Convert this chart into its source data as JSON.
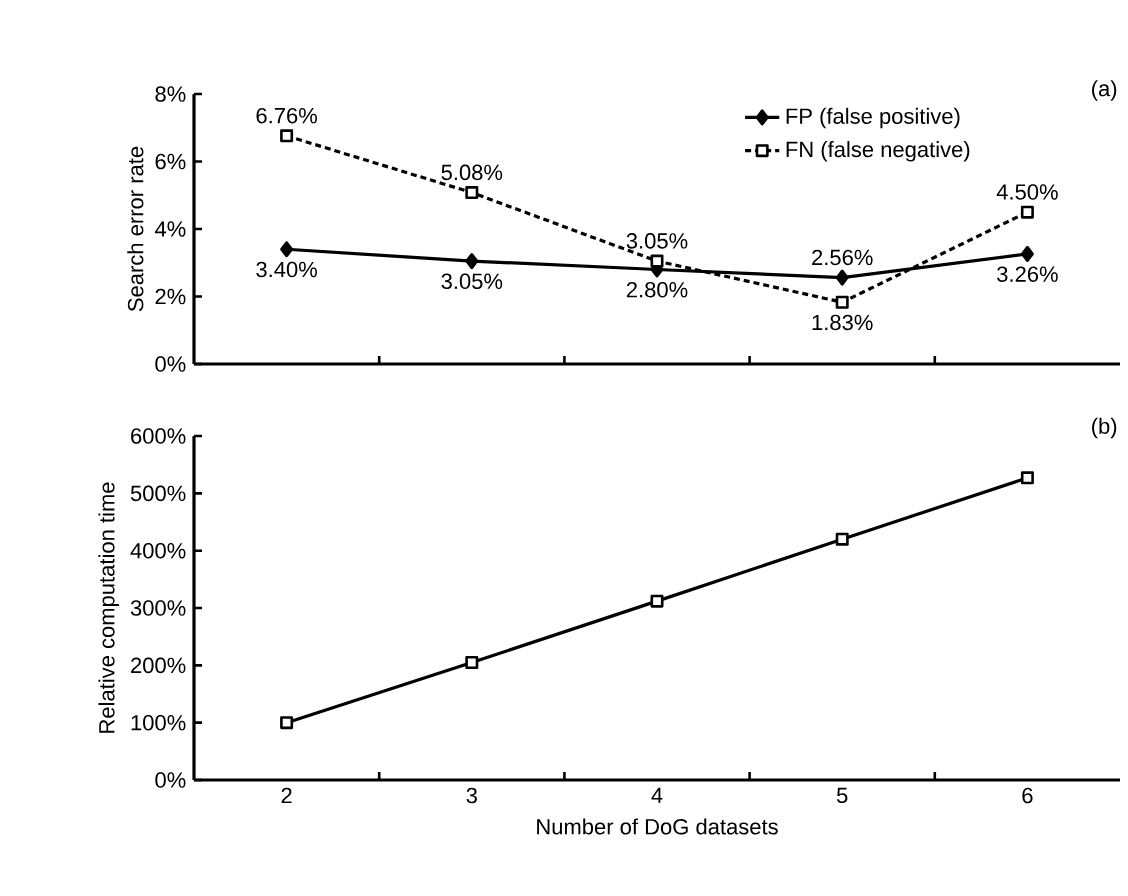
{
  "chart_data": [
    {
      "type": "line",
      "ylabel": "Search error rate",
      "categories": [
        "2",
        "3",
        "4",
        "5",
        "6"
      ],
      "ylim": [
        0,
        8
      ],
      "yticks": [
        {
          "value": 0,
          "label": "0%"
        },
        {
          "value": 2,
          "label": "2%"
        },
        {
          "value": 4,
          "label": "4%"
        },
        {
          "value": 6,
          "label": "6%"
        },
        {
          "value": 8,
          "label": "8%"
        }
      ],
      "tick_labels": "y",
      "legend": "top right",
      "annotations": [
        "(a)"
      ],
      "series": [
        {
          "name": "FP (false positive)",
          "color": "#000000",
          "marker": "diamond",
          "line_style": "solid",
          "values": [
            3.4,
            3.05,
            2.8,
            2.56,
            3.26
          ],
          "value_labels": [
            "3.40%",
            "3.05%",
            "2.80%",
            "2.56%",
            "3.26%"
          ]
        },
        {
          "name": "FN (false negative)",
          "color": "#000000",
          "marker": "square",
          "line_style": "dashed",
          "values": [
            6.76,
            5.08,
            3.05,
            1.83,
            4.5
          ],
          "value_labels": [
            "6.76%",
            "5.08%",
            "3.05%",
            "1.83%",
            "4.50%"
          ]
        }
      ]
    },
    {
      "type": "line",
      "ylabel": "Relative computation time",
      "xlabel": "Number of DoG datasets",
      "categories": [
        "2",
        "3",
        "4",
        "5",
        "6"
      ],
      "ylim": [
        0,
        600
      ],
      "yticks": [
        {
          "value": 0,
          "label": "0%"
        },
        {
          "value": 100,
          "label": "100%"
        },
        {
          "value": 200,
          "label": "200%"
        },
        {
          "value": 300,
          "label": "300%"
        },
        {
          "value": 400,
          "label": "400%"
        },
        {
          "value": 500,
          "label": "500%"
        },
        {
          "value": 600,
          "label": "600%"
        }
      ],
      "annotations": [
        "(b)"
      ],
      "series": [
        {
          "color": "#000000",
          "marker": "square",
          "line_style": "solid",
          "values": [
            100,
            205,
            312,
            420,
            527
          ]
        }
      ]
    }
  ]
}
